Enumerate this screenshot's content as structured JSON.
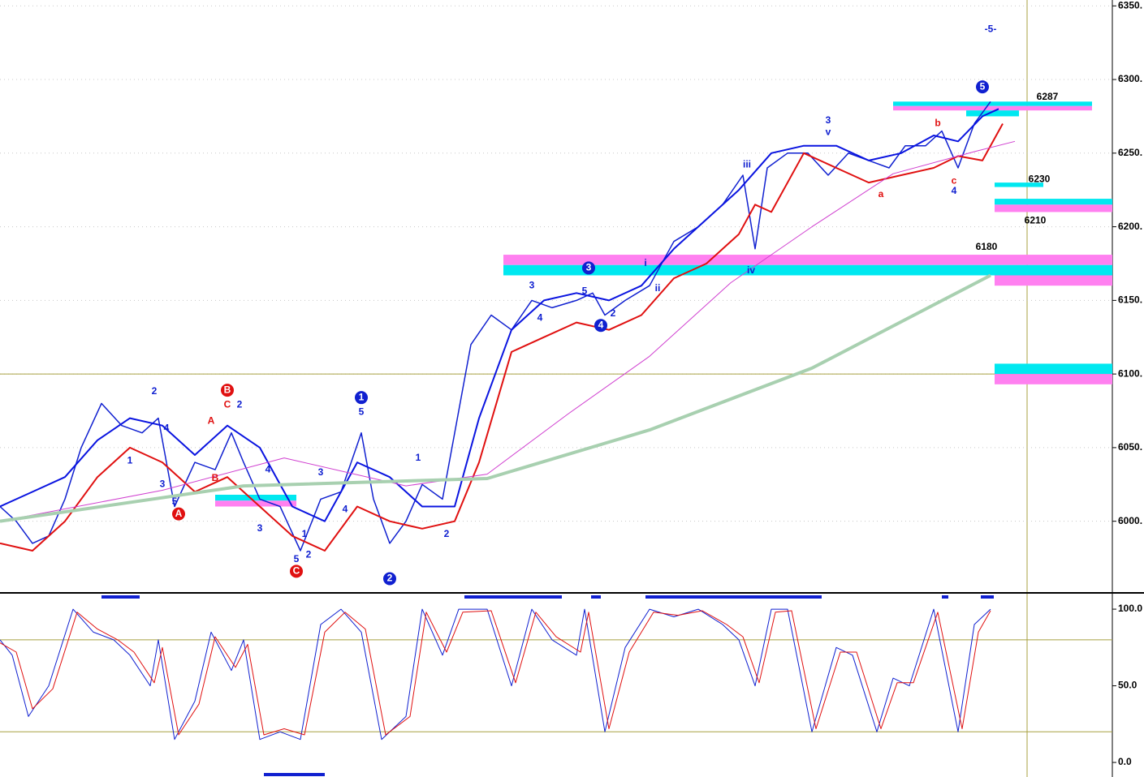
{
  "chart_data": [
    {
      "type": "line",
      "xlim": [
        0,
        274
      ],
      "ylim": [
        5953,
        6354
      ],
      "yticks": [
        {
          "value": 6350,
          "label": "6350."
        },
        {
          "value": 6300,
          "label": "6300."
        },
        {
          "value": 6250,
          "label": "6250."
        },
        {
          "value": 6200,
          "label": "6200."
        },
        {
          "value": 6150,
          "label": "6150."
        },
        {
          "value": 6100,
          "label": "6100."
        },
        {
          "value": 6050,
          "label": "6050."
        },
        {
          "value": 6000,
          "label": "6000."
        }
      ],
      "grid": true,
      "hlines": [
        6100
      ],
      "series": [
        {
          "name": "Price",
          "color": "#1020d0",
          "width": 1.5,
          "x": [
            0,
            4,
            8,
            12,
            16,
            20,
            25,
            30,
            35,
            39,
            43,
            48,
            53,
            57,
            60,
            64,
            69,
            74,
            79,
            84,
            89,
            92,
            96,
            100,
            104,
            109,
            112,
            116,
            121,
            126,
            131,
            136,
            142,
            146,
            149,
            154,
            160,
            166,
            172,
            178,
            183,
            186,
            189,
            194,
            199,
            204,
            209,
            214,
            219,
            223,
            228,
            232,
            236,
            240,
            244
          ],
          "values": [
            6010,
            6000,
            5985,
            5990,
            6015,
            6050,
            6080,
            6065,
            6060,
            6070,
            6010,
            6040,
            6035,
            6060,
            6040,
            6015,
            6010,
            5980,
            6015,
            6020,
            6060,
            6015,
            5985,
            6000,
            6025,
            6015,
            6060,
            6120,
            6140,
            6130,
            6150,
            6145,
            6150,
            6155,
            6140,
            6150,
            6160,
            6190,
            6200,
            6215,
            6235,
            6185,
            6240,
            6250,
            6250,
            6235,
            6250,
            6245,
            6240,
            6255,
            6255,
            6265,
            6240,
            6270,
            6285
          ]
        },
        {
          "name": "Upper band",
          "color": "#0a14e0",
          "width": 2,
          "x": [
            0,
            8,
            16,
            24,
            32,
            40,
            48,
            56,
            64,
            72,
            80,
            88,
            96,
            104,
            112,
            118,
            126,
            134,
            142,
            150,
            158,
            166,
            174,
            182,
            190,
            198,
            206,
            214,
            222,
            230,
            236,
            242,
            246
          ],
          "values": [
            6010,
            6020,
            6030,
            6055,
            6070,
            6065,
            6045,
            6065,
            6050,
            6010,
            6000,
            6040,
            6030,
            6010,
            6010,
            6070,
            6130,
            6150,
            6155,
            6150,
            6160,
            6185,
            6205,
            6225,
            6250,
            6255,
            6255,
            6245,
            6250,
            6262,
            6258,
            6275,
            6280
          ]
        },
        {
          "name": "Lower band",
          "color": "#e01010",
          "width": 2,
          "x": [
            0,
            8,
            16,
            24,
            32,
            40,
            48,
            56,
            64,
            72,
            80,
            88,
            96,
            104,
            112,
            118,
            126,
            134,
            142,
            150,
            158,
            166,
            174,
            182,
            186,
            190,
            198,
            206,
            214,
            222,
            230,
            236,
            242,
            247
          ],
          "values": [
            5985,
            5980,
            6000,
            6030,
            6050,
            6040,
            6020,
            6030,
            6010,
            5990,
            5980,
            6010,
            6000,
            5995,
            6000,
            6040,
            6115,
            6125,
            6135,
            6130,
            6140,
            6165,
            6175,
            6195,
            6215,
            6210,
            6250,
            6240,
            6230,
            6235,
            6240,
            6248,
            6245,
            6270
          ]
        },
        {
          "name": "Slow average",
          "color": "#d040d0",
          "width": 1,
          "x": [
            0,
            40,
            70,
            100,
            120,
            140,
            160,
            180,
            200,
            220,
            240,
            250
          ],
          "values": [
            6000,
            6021,
            6043,
            6024,
            6032,
            6073,
            6112,
            6162,
            6200,
            6236,
            6251,
            6258
          ]
        },
        {
          "name": "Long average",
          "color": "#a8d0b0",
          "width": 4,
          "x": [
            0,
            60,
            120,
            160,
            200,
            244
          ],
          "values": [
            6000,
            6024,
            6029,
            6062,
            6104,
            6167
          ]
        }
      ],
      "bands": [
        {
          "x": [
            124,
            274
          ],
          "y": [
            6174,
            6181
          ],
          "color": "#ff80f0"
        },
        {
          "x": [
            124,
            274
          ],
          "y": [
            6167,
            6174
          ],
          "color": "#00e8f0"
        },
        {
          "x": [
            245,
            274
          ],
          "y": [
            6160,
            6167
          ],
          "color": "#ff80f0"
        },
        {
          "x": [
            220,
            269
          ],
          "y": [
            6282,
            6285
          ],
          "color": "#00e8f0"
        },
        {
          "x": [
            220,
            269
          ],
          "y": [
            6279,
            6282
          ],
          "color": "#ff80f0"
        },
        {
          "x": [
            238,
            251
          ],
          "y": [
            6275,
            6279
          ],
          "color": "#00e8f0"
        },
        {
          "x": [
            245,
            257
          ],
          "y": [
            6227,
            6230
          ],
          "color": "#00e8f0"
        },
        {
          "x": [
            245,
            274
          ],
          "y": [
            6215,
            6219
          ],
          "color": "#00e8f0"
        },
        {
          "x": [
            245,
            274
          ],
          "y": [
            6210,
            6215
          ],
          "color": "#ff80f0"
        },
        {
          "x": [
            245,
            274
          ],
          "y": [
            6100,
            6107
          ],
          "color": "#00e8f0"
        },
        {
          "x": [
            245,
            274
          ],
          "y": [
            6093,
            6100
          ],
          "color": "#ff80f0"
        },
        {
          "x": [
            53,
            73
          ],
          "y": [
            6014,
            6018
          ],
          "color": "#00e8f0"
        },
        {
          "x": [
            53,
            73
          ],
          "y": [
            6010,
            6014
          ],
          "color": "#ff80f0"
        }
      ],
      "annotations": [
        {
          "text": "6287",
          "x": 258,
          "y": 6288,
          "color": "#000000"
        },
        {
          "text": "6230",
          "x": 256,
          "y": 6232,
          "color": "#000000"
        },
        {
          "text": "6210",
          "x": 255,
          "y": 6204,
          "color": "#000000"
        },
        {
          "text": "6180",
          "x": 243,
          "y": 6186,
          "color": "#000000"
        },
        {
          "text": "-5-",
          "x": 244,
          "y": 6334,
          "color": "#1020d0"
        },
        {
          "text": "5",
          "x": 242,
          "y": 6295,
          "color": "#1020d0",
          "circle": true
        },
        {
          "text": "3",
          "x": 145,
          "y": 6172,
          "color": "#1020d0",
          "circle": true
        },
        {
          "text": "4",
          "x": 148,
          "y": 6133,
          "color": "#1020d0",
          "circle": true
        },
        {
          "text": "1",
          "x": 89,
          "y": 6084,
          "color": "#1020d0",
          "circle": true
        },
        {
          "text": "2",
          "x": 96,
          "y": 5961,
          "color": "#1020d0",
          "circle": true
        },
        {
          "text": "A",
          "x": 44,
          "y": 6005,
          "color": "#e01010",
          "circle": true
        },
        {
          "text": "B",
          "x": 56,
          "y": 6089,
          "color": "#e01010",
          "circle": true
        },
        {
          "text": "C",
          "x": 73,
          "y": 5966,
          "color": "#e01010",
          "circle": true
        },
        {
          "text": "iii",
          "x": 184,
          "y": 6242,
          "color": "#1020d0"
        },
        {
          "text": "iv",
          "x": 185,
          "y": 6170,
          "color": "#1020d0"
        },
        {
          "text": "i",
          "x": 159,
          "y": 6175,
          "color": "#1020d0"
        },
        {
          "text": "ii",
          "x": 162,
          "y": 6158,
          "color": "#1020d0"
        },
        {
          "text": "3",
          "x": 204,
          "y": 6272,
          "color": "#1020d0"
        },
        {
          "text": "v",
          "x": 204,
          "y": 6264,
          "color": "#1020d0"
        },
        {
          "text": "b",
          "x": 231,
          "y": 6270,
          "color": "#e01010"
        },
        {
          "text": "a",
          "x": 217,
          "y": 6222,
          "color": "#e01010"
        },
        {
          "text": "c",
          "x": 235,
          "y": 6231,
          "color": "#e01010"
        },
        {
          "text": "4",
          "x": 235,
          "y": 6224,
          "color": "#1020d0"
        },
        {
          "text": "3",
          "x": 131,
          "y": 6160,
          "color": "#1020d0"
        },
        {
          "text": "5",
          "x": 144,
          "y": 6156,
          "color": "#1020d0"
        },
        {
          "text": "4",
          "x": 133,
          "y": 6138,
          "color": "#1020d0"
        },
        {
          "text": "2",
          "x": 151,
          "y": 6141,
          "color": "#1020d0"
        },
        {
          "text": "5",
          "x": 89,
          "y": 6074,
          "color": "#1020d0"
        },
        {
          "text": "1",
          "x": 103,
          "y": 6043,
          "color": "#1020d0"
        },
        {
          "text": "2",
          "x": 110,
          "y": 5991,
          "color": "#1020d0"
        },
        {
          "text": "2",
          "x": 38,
          "y": 6088,
          "color": "#1020d0"
        },
        {
          "text": "1",
          "x": 32,
          "y": 6041,
          "color": "#1020d0"
        },
        {
          "text": "4",
          "x": 41,
          "y": 6063,
          "color": "#1020d0"
        },
        {
          "text": "3",
          "x": 40,
          "y": 6025,
          "color": "#1020d0"
        },
        {
          "text": "5",
          "x": 43,
          "y": 6013,
          "color": "#1020d0"
        },
        {
          "text": "A",
          "x": 52,
          "y": 6068,
          "color": "#e01010"
        },
        {
          "text": "C",
          "x": 56,
          "y": 6079,
          "color": "#e01010"
        },
        {
          "text": "2",
          "x": 59,
          "y": 6079,
          "color": "#1020d0"
        },
        {
          "text": "B",
          "x": 53,
          "y": 6029,
          "color": "#e01010"
        },
        {
          "text": "4",
          "x": 66,
          "y": 6035,
          "color": "#1020d0"
        },
        {
          "text": "3",
          "x": 64,
          "y": 5995,
          "color": "#1020d0"
        },
        {
          "text": "3",
          "x": 79,
          "y": 6033,
          "color": "#1020d0"
        },
        {
          "text": "4",
          "x": 85,
          "y": 6008,
          "color": "#1020d0"
        },
        {
          "text": "1",
          "x": 75,
          "y": 5991,
          "color": "#1020d0"
        },
        {
          "text": "5",
          "x": 73,
          "y": 5974,
          "color": "#1020d0"
        },
        {
          "text": "2",
          "x": 76,
          "y": 5977,
          "color": "#1020d0"
        }
      ]
    },
    {
      "type": "line",
      "xlim": [
        0,
        274
      ],
      "ylim": [
        -9.5,
        108.5
      ],
      "yticks": [
        {
          "value": 100,
          "label": "100.0"
        },
        {
          "value": 50,
          "label": "50.0"
        },
        {
          "value": 0,
          "label": "0.0"
        }
      ],
      "hlines": [
        80,
        20
      ],
      "series": [
        {
          "name": "%K",
          "color": "#1020d0",
          "width": 1,
          "x": [
            0,
            3,
            7,
            12,
            18,
            23,
            28,
            32,
            37,
            39,
            43,
            48,
            52,
            57,
            60,
            64,
            69,
            74,
            79,
            84,
            89,
            94,
            100,
            104,
            109,
            113,
            120,
            126,
            131,
            136,
            142,
            144,
            149,
            154,
            160,
            166,
            172,
            178,
            182,
            186,
            190,
            194,
            200,
            206,
            210,
            216,
            220,
            224,
            230,
            236,
            240,
            244
          ],
          "values": [
            80,
            70,
            30,
            50,
            100,
            85,
            80,
            70,
            50,
            80,
            15,
            40,
            85,
            60,
            80,
            15,
            20,
            15,
            90,
            100,
            85,
            15,
            30,
            100,
            70,
            100,
            100,
            50,
            100,
            80,
            70,
            100,
            20,
            75,
            100,
            95,
            100,
            90,
            80,
            50,
            100,
            100,
            20,
            75,
            70,
            20,
            55,
            50,
            100,
            20,
            90,
            100
          ]
        },
        {
          "name": "%D",
          "color": "#e01010",
          "width": 1,
          "x": [
            0,
            4,
            8,
            13,
            19,
            24,
            29,
            33,
            38,
            40,
            44,
            49,
            53,
            58,
            61,
            65,
            70,
            75,
            80,
            85,
            90,
            95,
            101,
            105,
            110,
            114,
            121,
            127,
            132,
            137,
            143,
            145,
            150,
            155,
            161,
            167,
            173,
            179,
            183,
            187,
            191,
            195,
            201,
            207,
            211,
            217,
            221,
            225,
            231,
            237,
            241,
            244
          ],
          "values": [
            78,
            72,
            35,
            48,
            98,
            87,
            80,
            72,
            52,
            75,
            18,
            38,
            82,
            62,
            77,
            18,
            22,
            18,
            85,
            98,
            87,
            18,
            30,
            98,
            72,
            98,
            99,
            52,
            98,
            82,
            72,
            98,
            22,
            72,
            98,
            96,
            99,
            90,
            82,
            52,
            98,
            99,
            22,
            72,
            72,
            22,
            52,
            52,
            98,
            22,
            85,
            99
          ]
        }
      ]
    }
  ]
}
